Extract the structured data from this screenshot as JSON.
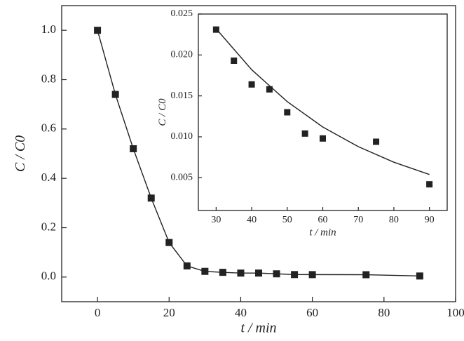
{
  "chart_data": [
    {
      "type": "scatter",
      "xlabel": "t / min",
      "ylabel": "C / C0",
      "xlim": [
        -10,
        100
      ],
      "ylim": [
        -0.1,
        1.1
      ],
      "xticks": [
        0,
        20,
        40,
        60,
        80,
        100
      ],
      "yticks": [
        {
          "value": 0,
          "label": "0.0"
        },
        0.2,
        0.4,
        0.6,
        0.8,
        {
          "value": 1,
          "label": "1.0"
        }
      ],
      "series": [
        {
          "mode": "markers+line",
          "color": "#222222",
          "x": [
            0,
            5,
            10,
            15,
            20,
            25,
            30,
            35,
            40,
            45,
            50,
            55,
            60,
            75,
            90
          ],
          "values": [
            1.0,
            0.74,
            0.52,
            0.32,
            0.14,
            0.045,
            0.023,
            0.019,
            0.016,
            0.016,
            0.013,
            0.01,
            0.0098,
            0.0094,
            0.0042
          ]
        }
      ]
    },
    {
      "type": "scatter",
      "xlabel": "t / min",
      "ylabel": "C / C0",
      "xlim": [
        25,
        95
      ],
      "ylim": [
        0.001,
        0.025
      ],
      "xticks": [
        30,
        40,
        50,
        60,
        70,
        80,
        90
      ],
      "yticks": [
        0.005,
        {
          "value": 0.01,
          "label": "0.010"
        },
        0.015,
        {
          "value": 0.02,
          "label": "0.020"
        },
        0.025
      ],
      "series": [
        {
          "mode": "markers",
          "color": "#222222",
          "x": [
            30,
            35,
            40,
            45,
            50,
            55,
            60,
            75,
            90
          ],
          "values": [
            0.0231,
            0.0193,
            0.0164,
            0.0158,
            0.013,
            0.0104,
            0.0098,
            0.0094,
            0.0042
          ]
        },
        {
          "mode": "line",
          "color": "#222222",
          "x": [
            30,
            40,
            50,
            60,
            70,
            80,
            90
          ],
          "values": [
            0.0232,
            0.0182,
            0.0143,
            0.0112,
            0.0088,
            0.0069,
            0.0054
          ]
        }
      ]
    }
  ]
}
